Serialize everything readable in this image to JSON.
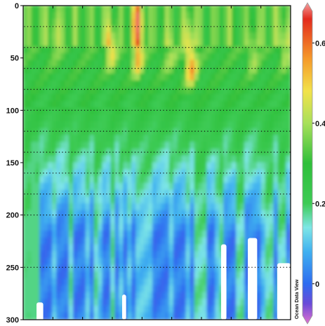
{
  "chart_data": {
    "type": "heatmap",
    "title": "",
    "xlabel": "",
    "ylabel": "",
    "y_axis": {
      "ticks": [
        0,
        50,
        100,
        150,
        200,
        250,
        300
      ],
      "reversed": true,
      "range": [
        0,
        300
      ]
    },
    "colorbar": {
      "ticks": [
        0.6,
        0.4,
        0.2,
        0
      ],
      "range": [
        -0.1,
        0.7
      ],
      "stops": [
        {
          "v": -0.1,
          "color": "#e070d0"
        },
        {
          "v": -0.05,
          "color": "#6a4bd8"
        },
        {
          "v": 0.0,
          "color": "#2e6cf0"
        },
        {
          "v": 0.08,
          "color": "#3fb0f0"
        },
        {
          "v": 0.14,
          "color": "#7ee6e6"
        },
        {
          "v": 0.2,
          "color": "#3dcb55"
        },
        {
          "v": 0.3,
          "color": "#2fbf3a"
        },
        {
          "v": 0.4,
          "color": "#a8e05a"
        },
        {
          "v": 0.48,
          "color": "#f2e24a"
        },
        {
          "v": 0.56,
          "color": "#f59a2a"
        },
        {
          "v": 0.66,
          "color": "#e32b1e"
        },
        {
          "v": 0.7,
          "color": "#f4a0a0"
        }
      ]
    },
    "sample_depths": [
      20,
      40,
      60,
      80,
      100,
      120,
      140,
      160,
      180,
      200,
      250
    ],
    "grid": false,
    "legend": "right"
  },
  "watermark": "Ocean Data View",
  "colors": {
    "background": "#ffffff",
    "frame": "#000000"
  }
}
